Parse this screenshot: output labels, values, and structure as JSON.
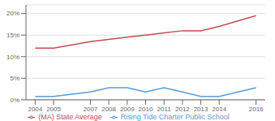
{
  "chart_data": {
    "type": "line",
    "x": [
      2004,
      2005,
      2007,
      2008,
      2009,
      2010,
      2011,
      2012,
      2013,
      2014,
      2016
    ],
    "series": [
      {
        "name": "Rising Tide Charter Public School",
        "color": "#5b9bd5",
        "values": [
          0.8,
          0.8,
          1.8,
          2.8,
          2.8,
          1.8,
          2.8,
          1.8,
          0.8,
          0.8,
          2.8
        ]
      },
      {
        "name": "(MA) State Average",
        "color": "#c0504d",
        "values": [
          12.0,
          12.0,
          13.5,
          14.0,
          14.5,
          15.0,
          15.5,
          16.0,
          16.0,
          17.0,
          19.5
        ]
      }
    ],
    "xlim": [
      2003.5,
      2016.5
    ],
    "xticks": [
      2004,
      2005,
      2007,
      2008,
      2009,
      2010,
      2011,
      2012,
      2013,
      2014,
      2016
    ],
    "ylim": [
      0,
      22
    ],
    "yticks": [
      {
        "value": 0,
        "label": "0%"
      },
      {
        "value": 5,
        "label": "5%"
      },
      {
        "value": 10,
        "label": "10%"
      },
      {
        "value": 15,
        "label": "15%"
      },
      {
        "value": 20,
        "label": "20%"
      }
    ],
    "grid": "y",
    "legend": "bottom"
  }
}
